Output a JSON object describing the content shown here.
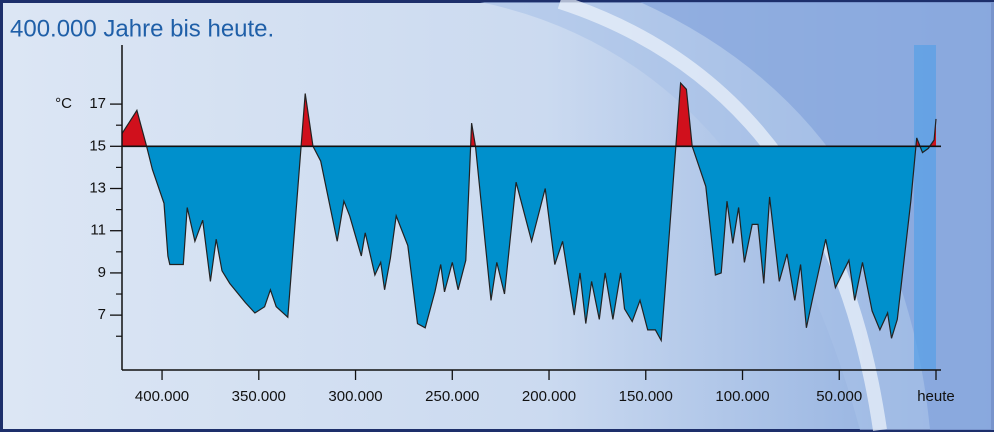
{
  "chart_data": {
    "type": "area",
    "title": "400.000 Jahre bis heute.",
    "ylabel": "°C",
    "x": [
      420700,
      413000,
      408000,
      405000,
      399000,
      397000,
      396000,
      389000,
      387000,
      383000,
      379000,
      375000,
      372000,
      369000,
      365000,
      357000,
      352000,
      347000,
      344000,
      341000,
      335000,
      326000,
      322000,
      318000,
      309500,
      306000,
      303000,
      297000,
      295000,
      290000,
      287000,
      285000,
      282000,
      279000,
      273000,
      268000,
      264000,
      259000,
      256000,
      254000,
      250000,
      247000,
      243000,
      240000,
      238000,
      230000,
      227000,
      223000,
      217000,
      209000,
      202000,
      197000,
      193000,
      187000,
      184000,
      181000,
      178000,
      174000,
      171000,
      167000,
      163000,
      161000,
      157000,
      153000,
      149000,
      145000,
      142000,
      140000,
      132000,
      129000,
      126000,
      119000,
      114000,
      111000,
      108000,
      105000,
      102000,
      99000,
      95000,
      92000,
      89000,
      86000,
      81000,
      77000,
      73000,
      70000,
      67000,
      64000,
      57000,
      52000,
      45000,
      42000,
      38000,
      33000,
      29000,
      25000,
      23000,
      20000,
      13000,
      10000,
      7000,
      4000,
      1000,
      0
    ],
    "values": [
      15.6,
      16.7,
      15.0,
      13.9,
      12.3,
      9.8,
      9.4,
      9.4,
      12.1,
      10.5,
      11.5,
      8.6,
      10.6,
      9.1,
      8.5,
      7.6,
      7.1,
      7.4,
      8.2,
      7.4,
      6.9,
      17.5,
      15.0,
      14.3,
      10.5,
      12.4,
      11.7,
      9.8,
      10.9,
      8.9,
      9.5,
      8.2,
      9.7,
      11.7,
      10.3,
      6.6,
      6.4,
      8.1,
      9.4,
      8.1,
      9.5,
      8.2,
      9.6,
      16.1,
      15.0,
      7.7,
      9.5,
      8.0,
      13.3,
      10.5,
      13.0,
      9.4,
      10.5,
      7.0,
      9.0,
      6.6,
      8.6,
      6.8,
      9.0,
      6.8,
      9.0,
      7.3,
      6.7,
      7.7,
      6.3,
      6.3,
      5.8,
      8.2,
      18.0,
      17.7,
      15.0,
      13.1,
      8.9,
      9.0,
      12.4,
      10.4,
      12.1,
      9.5,
      11.3,
      11.3,
      8.5,
      12.6,
      8.6,
      9.9,
      7.7,
      9.4,
      6.4,
      7.7,
      10.6,
      8.3,
      9.6,
      7.7,
      9.5,
      7.2,
      6.3,
      7.1,
      5.9,
      6.8,
      12.4,
      15.4,
      14.7,
      14.9,
      15.3,
      16.3
    ],
    "baseline": 15,
    "color_below": "#0090cc",
    "color_above": "#d0101c",
    "xlim": [
      420700,
      0
    ],
    "ylim": [
      4.4,
      19.8
    ],
    "xticks": [
      {
        "value": 400000,
        "label": "400.000"
      },
      {
        "value": 350000,
        "label": "350.000"
      },
      {
        "value": 300000,
        "label": "300.000"
      },
      {
        "value": 250000,
        "label": "250.000"
      },
      {
        "value": 200000,
        "label": "200.000"
      },
      {
        "value": 150000,
        "label": "150.000"
      },
      {
        "value": 100000,
        "label": "100.000"
      },
      {
        "value": 50000,
        "label": "50.000"
      },
      {
        "value": 0,
        "label": "heute"
      }
    ],
    "yticks": [
      7,
      9,
      11,
      13,
      15,
      17
    ],
    "yminor_ticks": [
      6,
      8,
      10,
      12,
      14,
      16
    ]
  }
}
